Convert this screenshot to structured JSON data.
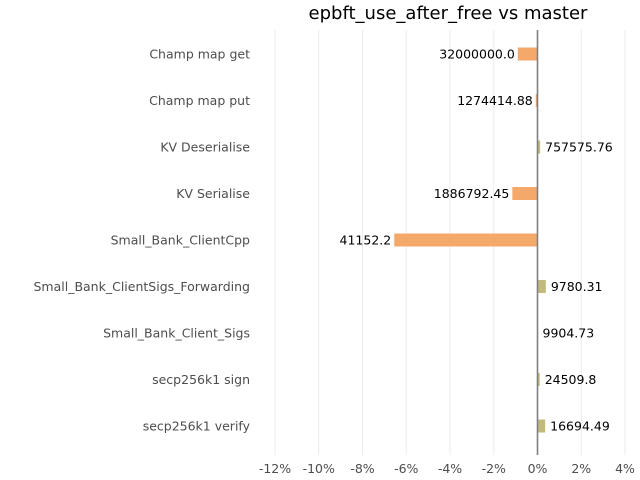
{
  "chart_data": {
    "type": "bar",
    "orientation": "horizontal",
    "title": "epbft_use_after_free vs master",
    "xlabel": "",
    "ylabel": "",
    "x_ticks": [
      "-12%",
      "-10%",
      "-8%",
      "-6%",
      "-4%",
      "-2%",
      "0%",
      "2%",
      "4%"
    ],
    "xlim": [
      -12,
      4
    ],
    "grid": "vertical",
    "colors": {
      "negative": "#f4a96b",
      "positive": "#c2b97d",
      "zero_line": "#808080"
    },
    "categories": [
      "Champ map get",
      "Champ map put",
      "KV Deserialise",
      "KV Serialise",
      "Small_Bank_ClientCpp",
      "Small_Bank_ClientSigs_Forwarding",
      "Small_Bank_Client_Sigs",
      "secp256k1 sign",
      "secp256k1 verify"
    ],
    "values": [
      -0.9,
      -0.08,
      0.12,
      -1.15,
      -6.55,
      0.38,
      0.0,
      0.1,
      0.35
    ],
    "labels": [
      "32000000.0",
      "1274414.88",
      "757575.76",
      "1886792.45",
      "41152.2",
      "9780.31",
      "9904.73",
      "24509.8",
      "16694.49"
    ]
  }
}
